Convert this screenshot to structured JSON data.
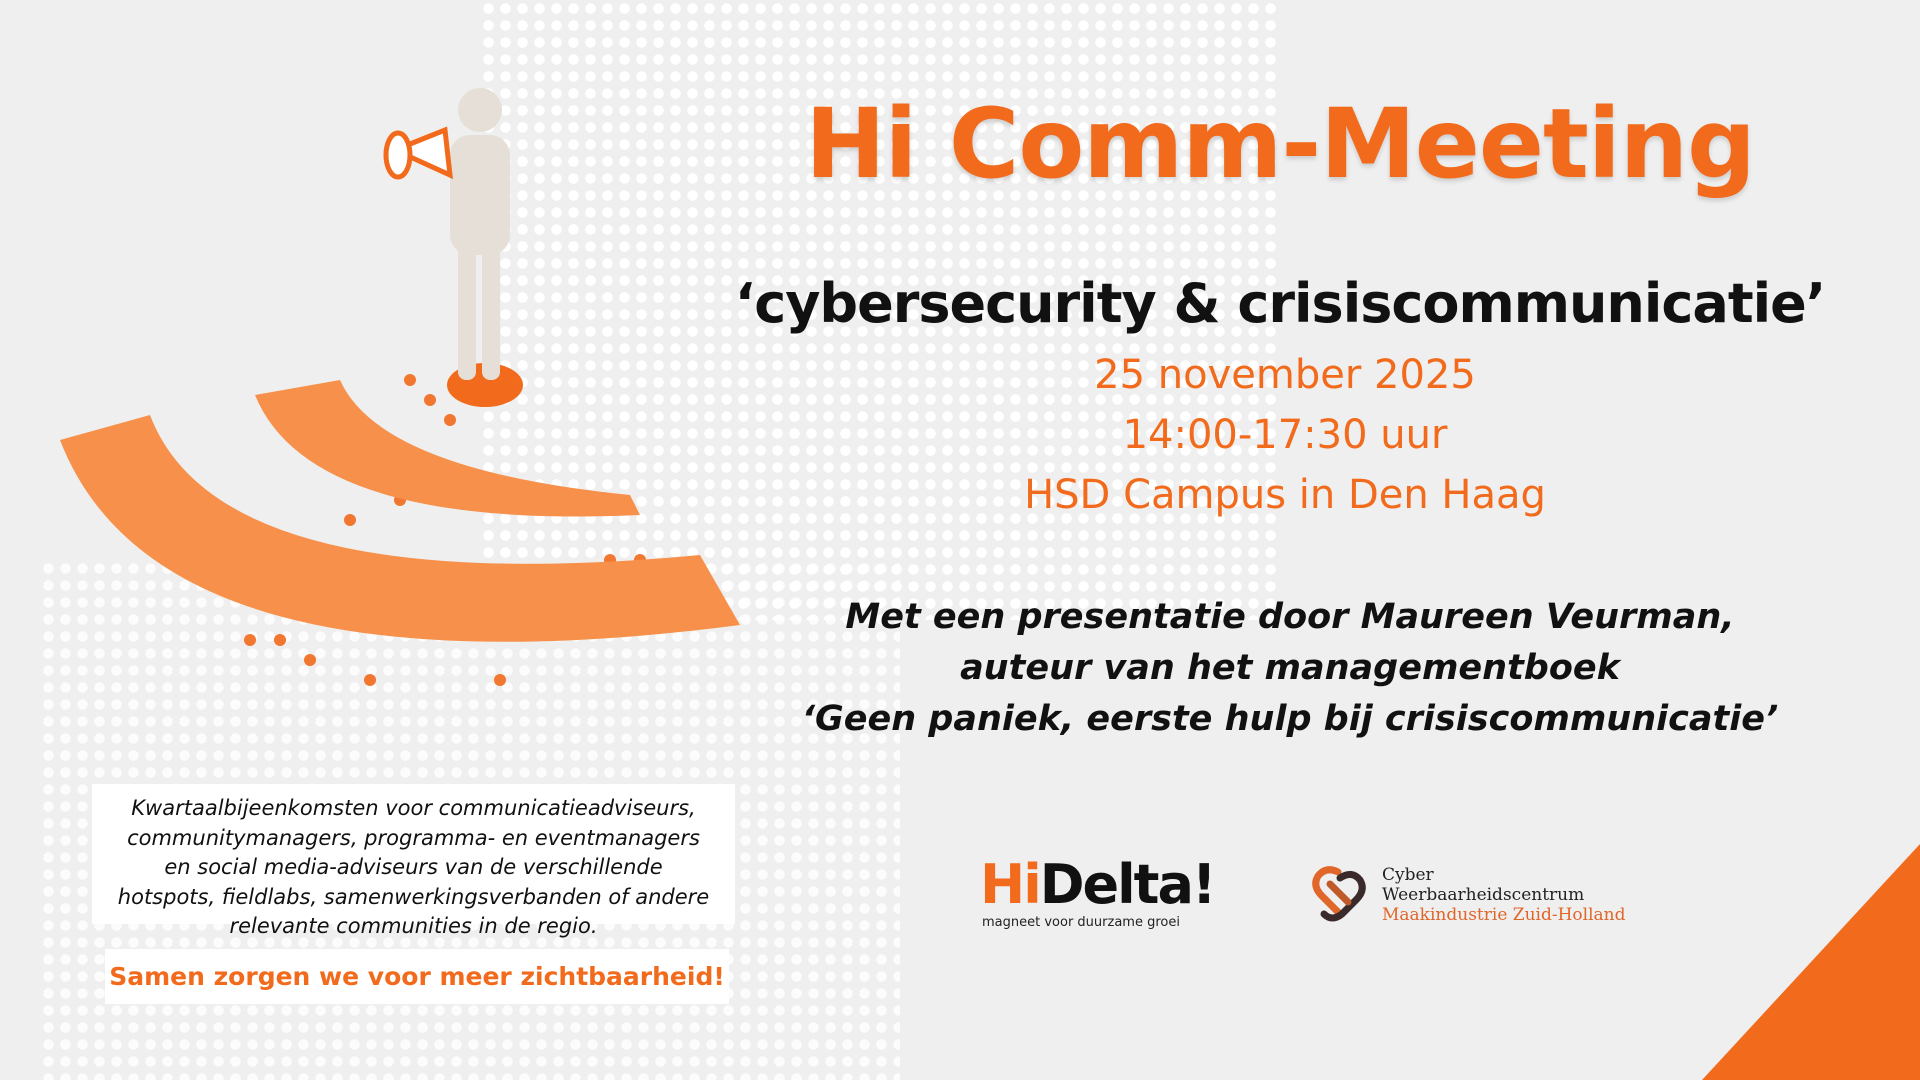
{
  "title": "Hi Comm-Meeting",
  "subtitle": "‘cybersecurity & crisiscommunicatie’",
  "event": {
    "date": "25 november 2025",
    "time": "14:00-17:30 uur",
    "location": "HSD Campus in Den Haag"
  },
  "presentation": [
    "Met een presentatie door Maureen Veurman,",
    "auteur van het managementboek",
    "‘Geen paniek, eerste hulp bij crisiscommunicatie’"
  ],
  "intro": [
    "Kwartaalbijeenkomsten voor communicatieadviseurs,",
    "communitymanagers, programma- en eventmanagers",
    "en social media-adviseurs van de verschillende",
    "hotspots, fieldlabs, samenwerkingsverbanden of andere",
    "relevante communities in de regio."
  ],
  "tagline": "Samen zorgen we voor meer zichtbaarheid!",
  "logos": {
    "hidelta": {
      "hi": "Hi",
      "delta": "Delta!",
      "tagline": "magneet voor duurzame groei"
    },
    "cyber": {
      "line1": "Cyber",
      "line2": "Weerbaarheidscentrum",
      "line3": "Maakindustrie Zuid-Holland"
    }
  },
  "colors": {
    "accent": "#f26a1b",
    "background": "#efefef",
    "text": "#111111"
  }
}
